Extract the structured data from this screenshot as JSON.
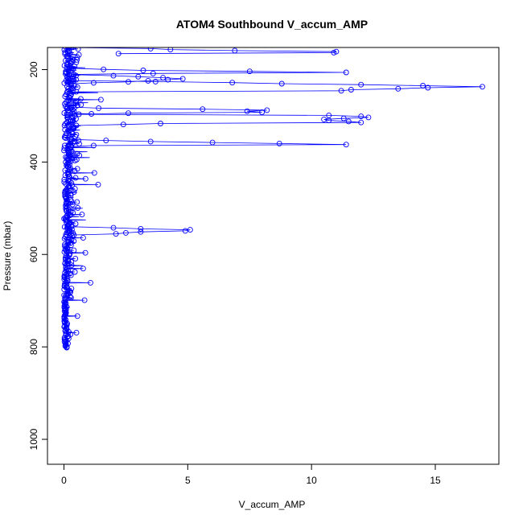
{
  "chart_data": {
    "type": "line",
    "title": "ATOM4 Southbound V_accum_AMP",
    "xlabel": "V_accum_AMP",
    "ylabel": "Pressure (mbar)",
    "xlim": [
      0,
      17.5
    ],
    "ylim": [
      1050,
      150
    ],
    "y_reversed": true,
    "x_ticks": [
      0,
      5,
      10,
      15
    ],
    "x_tick_labels": [
      "0",
      "5",
      "10",
      "15"
    ],
    "y_ticks": [
      200,
      400,
      600,
      800,
      1000
    ],
    "y_tick_labels": [
      "200",
      "400",
      "600",
      "800",
      "1000"
    ],
    "marker": "open-circle",
    "grid": false,
    "series_color": "#0000ff",
    "description_values": {
      "dense_core_pressure_range": [
        150,
        802
      ],
      "dense_core_amp_range": [
        0.0,
        0.35
      ]
    },
    "excursions": [
      {
        "p": 160,
        "v": [
          0.3,
          3.5,
          4.3,
          6.9,
          11.0,
          10.9,
          2.2
        ]
      },
      {
        "p": 205,
        "v": [
          0.3,
          1.6,
          3.2,
          7.5,
          11.4,
          3.6,
          0.4
        ]
      },
      {
        "p": 222,
        "v": [
          0.4,
          2.0,
          3.0,
          4.0,
          4.8,
          4.2,
          3.4,
          2.6,
          1.2,
          0.3
        ]
      },
      {
        "p": 237,
        "v": [
          0.4,
          3.7,
          6.8,
          8.8,
          12.0,
          14.5,
          16.9,
          14.7,
          13.5,
          11.6,
          11.2,
          0.5
        ]
      },
      {
        "p": 290,
        "v": [
          0.3,
          1.4,
          5.6,
          8.2,
          7.4,
          8.0,
          2.6,
          0.6
        ]
      },
      {
        "p": 310,
        "v": [
          0.4,
          10.7,
          12.0,
          12.3,
          11.3,
          10.5,
          10.7,
          11.5,
          12.0,
          3.9,
          2.4,
          0.5
        ]
      },
      {
        "p": 360,
        "v": [
          0.3,
          1.7,
          3.5,
          6.0,
          8.7,
          11.4,
          1.2,
          0.3
        ]
      },
      {
        "p": 550,
        "v": [
          0.3,
          2.0,
          3.1,
          5.1,
          4.9,
          3.1,
          2.5,
          2.1,
          0.4
        ]
      }
    ]
  }
}
